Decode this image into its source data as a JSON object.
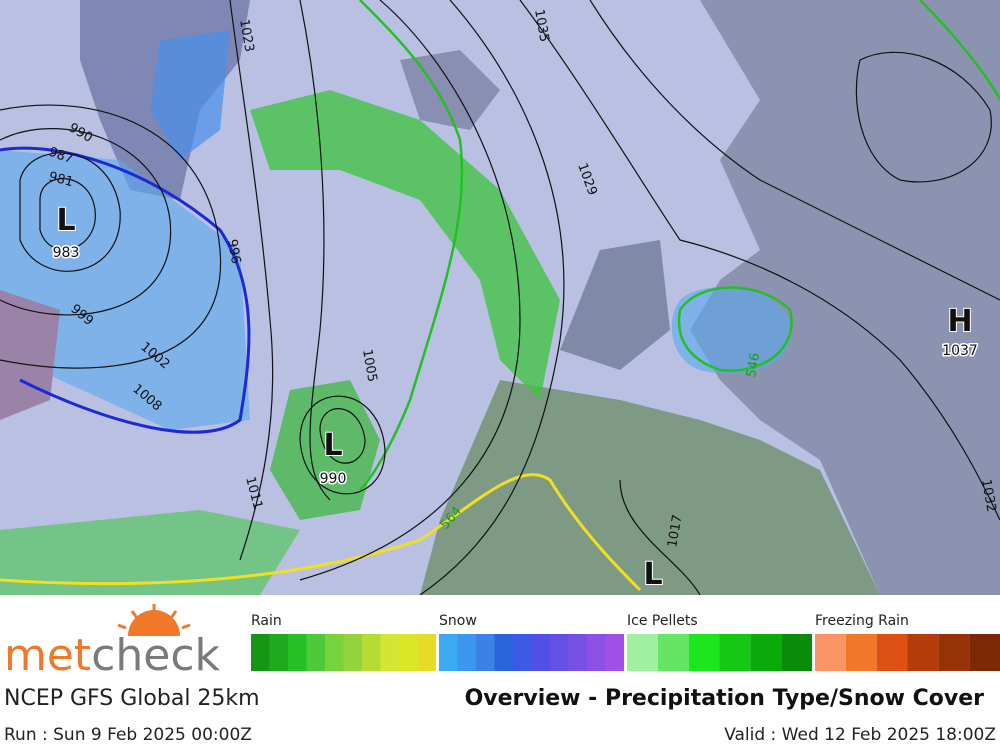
{
  "map": {
    "pressure_centers": [
      {
        "symbol": "L",
        "value": 983
      },
      {
        "symbol": "L",
        "value": 990
      },
      {
        "symbol": "H",
        "value": 1037
      },
      {
        "symbol": "L"
      }
    ],
    "contour_labels": [
      1023,
      1035,
      990,
      987,
      981,
      996,
      999,
      1002,
      1008,
      1011,
      1005,
      1029,
      1017,
      1032,
      546,
      564
    ]
  },
  "legend": [
    {
      "name": "Rain",
      "colors": [
        "#149614",
        "#1eaa1e",
        "#28be28",
        "#50c83c",
        "#78d23c",
        "#96d23c",
        "#b4dc32",
        "#d2e632",
        "#dce628",
        "#e6dc28"
      ]
    },
    {
      "name": "Snow",
      "colors": [
        "#3caaf0",
        "#3c96f0",
        "#3c82e6",
        "#2864dc",
        "#3c5ae6",
        "#5050e6",
        "#6450e6",
        "#7850e6",
        "#8c50e6",
        "#a050e6"
      ]
    },
    {
      "name": "Ice Pellets",
      "colors": [
        "#a0f0a0",
        "#64e664",
        "#1ee61e",
        "#14c814",
        "#0aaa0a",
        "#0a8c0a"
      ]
    },
    {
      "name": "Freezing Rain",
      "colors": [
        "#fa9664",
        "#f07828",
        "#dc5014",
        "#b43c0a",
        "#963205",
        "#7d2805"
      ]
    }
  ],
  "footer": {
    "logo_a": "met",
    "logo_b": "check",
    "model": "NCEP GFS Global 25km",
    "product": "Overview - Precipitation Type/Snow Cover",
    "run": "Run : Sun 9 Feb 2025 00:00Z",
    "valid": "Valid : Wed 12 Feb 2025 18:00Z"
  }
}
